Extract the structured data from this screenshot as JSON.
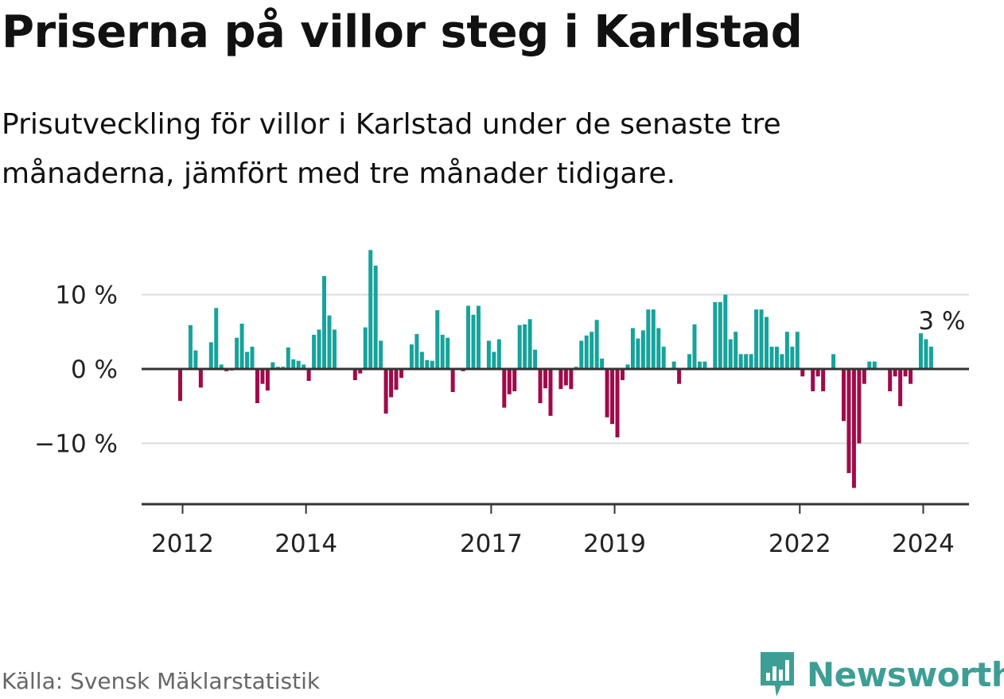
{
  "title": "Priserna på villor steg i Karlstad",
  "subtitle": "Prisutveckling för villor i Karlstad under de senaste tre månaderna, jämfört med tre månader tidigare.",
  "source": "Källa: Svensk Mäklarstatistik",
  "brand": {
    "name": "Newsworthy",
    "icon": "newsworthy-logo-icon"
  },
  "colors": {
    "positive": "#16a39b",
    "negative": "#a00a4a",
    "grid": "#dddddd",
    "axis": "#333333",
    "brand": "#3d9e95"
  },
  "chart_data": {
    "type": "bar",
    "title": "Priserna på villor steg i Karlstad",
    "xlabel": "",
    "ylabel": "",
    "ylim": [
      -18.5,
      16
    ],
    "yticks": [
      {
        "value": 10,
        "label": "10 %"
      },
      {
        "value": 0,
        "label": "0 %"
      },
      {
        "value": -10,
        "label": "−10 %"
      }
    ],
    "xticks": [
      {
        "index": 0,
        "label": "2012"
      },
      {
        "index": 24,
        "label": "2014"
      },
      {
        "index": 60,
        "label": "2017"
      },
      {
        "index": 84,
        "label": "2019"
      },
      {
        "index": 120,
        "label": "2022"
      },
      {
        "index": 144,
        "label": "2024"
      }
    ],
    "annotation": {
      "index": 145,
      "label": "3 %"
    },
    "values": [
      -4.3,
      0,
      5.9,
      2.5,
      -2.5,
      0,
      3.6,
      8.2,
      0.6,
      -0.3,
      -0.2,
      4.2,
      6.1,
      2.3,
      3.0,
      -4.6,
      -2.0,
      -2.9,
      0.9,
      0.3,
      0.3,
      2.9,
      1.3,
      1.1,
      0.6,
      -1.6,
      4.6,
      5.3,
      12.5,
      7.2,
      5.3,
      0,
      0,
      0,
      -1.5,
      -0.6,
      5.6,
      16.0,
      13.9,
      3.8,
      -6.0,
      -3.8,
      -2.8,
      -1.2,
      0,
      3.3,
      4.7,
      2.3,
      1.2,
      1.1,
      7.9,
      4.6,
      4.2,
      -3.1,
      0,
      -0.3,
      8.5,
      7.3,
      8.5,
      0,
      3.8,
      2.3,
      4.0,
      -5.2,
      -3.4,
      -3.0,
      5.9,
      6.0,
      6.7,
      2.6,
      -4.6,
      -2.6,
      -6.3,
      0,
      -2.7,
      -2.2,
      -2.7,
      0.3,
      3.8,
      4.5,
      5.0,
      6.6,
      1.4,
      -6.5,
      -7.4,
      -9.2,
      -1.5,
      0.6,
      5.5,
      4.1,
      5.2,
      8.0,
      8.0,
      5.5,
      3.0,
      0,
      1.0,
      -2.0,
      0,
      2.0,
      6.0,
      1.0,
      1.0,
      0,
      9.0,
      9.0,
      10.0,
      4.0,
      5.0,
      2.0,
      2.0,
      2.0,
      8.0,
      8.0,
      7.0,
      3.0,
      3.0,
      2.0,
      5.0,
      3.0,
      5.0,
      -1.0,
      0,
      -3.0,
      -1.0,
      -3.0,
      0,
      2.0,
      0,
      -7.0,
      -14.0,
      -16.0,
      -10.0,
      -2.0,
      1.0,
      1.0,
      0,
      0,
      -3.0,
      -1.0,
      -5.0,
      -1.0,
      -2.0,
      0,
      4.8,
      4.0,
      3.0
    ]
  }
}
